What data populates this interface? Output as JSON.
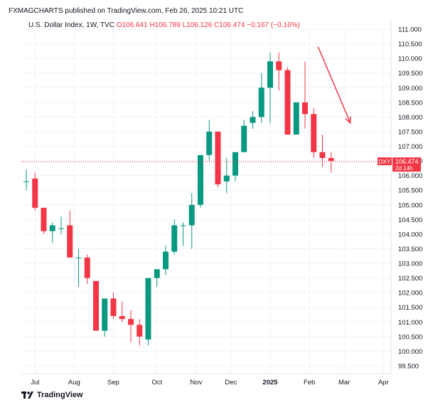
{
  "header": {
    "publisher_line": "FXMAGCHARTS published on TradingView.com, Feb 26, 2025 10:21 UTC"
  },
  "legend": {
    "symbol_line": "U.S. Dollar Index, 1W, TVC",
    "ohlc_line": "O106.641  H106.789  L106.126  C106.474  −0.167 (−0.16%)"
  },
  "price_tag": {
    "ticker": "DXY",
    "price": "106.474",
    "countdown": "2d 14h"
  },
  "footer": {
    "brand": "TradingView"
  },
  "colors": {
    "up": "#089981",
    "down": "#f23645",
    "grid": "#f0f3fa",
    "arrow": "#f23645"
  },
  "chart_data": {
    "type": "candlestick",
    "interval": "1W",
    "y_ticks": [
      "99.500",
      "100.000",
      "100.500",
      "101.000",
      "101.500",
      "102.000",
      "102.500",
      "103.000",
      "103.500",
      "104.000",
      "104.500",
      "105.000",
      "105.500",
      "106.000",
      "106.500",
      "107.000",
      "107.500",
      "108.000",
      "108.500",
      "109.000",
      "109.500",
      "110.000",
      "110.500",
      "111.000"
    ],
    "ylim": [
      99.3,
      111.3
    ],
    "x_ticks": [
      {
        "label": "Jul",
        "index": 1
      },
      {
        "label": "Aug",
        "index": 5.5
      },
      {
        "label": "Sep",
        "index": 10
      },
      {
        "label": "Oct",
        "index": 15
      },
      {
        "label": "Nov",
        "index": 19.5
      },
      {
        "label": "Dec",
        "index": 23.5
      },
      {
        "label": "2025",
        "index": 28
      },
      {
        "label": "Feb",
        "index": 32.5
      },
      {
        "label": "Mar",
        "index": 36.5
      },
      {
        "label": "Apr",
        "index": 41
      }
    ],
    "candles": [
      {
        "o": 105.8,
        "h": 106.2,
        "l": 105.5,
        "c": 105.8
      },
      {
        "o": 105.9,
        "h": 106.1,
        "l": 104.8,
        "c": 104.9
      },
      {
        "o": 104.9,
        "h": 104.9,
        "l": 104.0,
        "c": 104.1
      },
      {
        "o": 104.1,
        "h": 104.4,
        "l": 103.7,
        "c": 104.3
      },
      {
        "o": 104.2,
        "h": 104.6,
        "l": 104.0,
        "c": 104.2
      },
      {
        "o": 104.3,
        "h": 104.8,
        "l": 103.2,
        "c": 103.2
      },
      {
        "o": 103.2,
        "h": 103.5,
        "l": 102.2,
        "c": 103.2
      },
      {
        "o": 103.2,
        "h": 103.3,
        "l": 102.3,
        "c": 102.5
      },
      {
        "o": 102.4,
        "h": 102.4,
        "l": 100.7,
        "c": 100.7
      },
      {
        "o": 100.7,
        "h": 101.8,
        "l": 100.5,
        "c": 101.8
      },
      {
        "o": 101.8,
        "h": 102.0,
        "l": 101.1,
        "c": 101.2
      },
      {
        "o": 101.2,
        "h": 101.7,
        "l": 101.0,
        "c": 101.1
      },
      {
        "o": 101.1,
        "h": 101.4,
        "l": 100.3,
        "c": 100.9
      },
      {
        "o": 100.9,
        "h": 101.1,
        "l": 100.2,
        "c": 100.5
      },
      {
        "o": 100.4,
        "h": 102.5,
        "l": 100.2,
        "c": 102.5
      },
      {
        "o": 102.5,
        "h": 102.8,
        "l": 102.2,
        "c": 102.8
      },
      {
        "o": 102.8,
        "h": 103.6,
        "l": 102.6,
        "c": 103.4
      },
      {
        "o": 103.4,
        "h": 104.5,
        "l": 103.3,
        "c": 104.3
      },
      {
        "o": 104.3,
        "h": 104.4,
        "l": 103.6,
        "c": 104.3
      },
      {
        "o": 104.3,
        "h": 105.4,
        "l": 103.5,
        "c": 105.0
      },
      {
        "o": 105.0,
        "h": 106.7,
        "l": 104.9,
        "c": 106.7
      },
      {
        "o": 106.7,
        "h": 107.9,
        "l": 106.5,
        "c": 107.5
      },
      {
        "o": 107.5,
        "h": 107.5,
        "l": 105.6,
        "c": 105.7
      },
      {
        "o": 105.8,
        "h": 106.6,
        "l": 105.4,
        "c": 106.0
      },
      {
        "o": 106.0,
        "h": 106.8,
        "l": 105.8,
        "c": 106.8
      },
      {
        "o": 106.8,
        "h": 107.9,
        "l": 106.8,
        "c": 107.7
      },
      {
        "o": 107.8,
        "h": 108.2,
        "l": 107.6,
        "c": 108.0
      },
      {
        "o": 108.0,
        "h": 109.5,
        "l": 107.8,
        "c": 109.0
      },
      {
        "o": 109.0,
        "h": 110.2,
        "l": 107.8,
        "c": 109.9
      },
      {
        "o": 109.9,
        "h": 110.2,
        "l": 108.9,
        "c": 109.6
      },
      {
        "o": 109.6,
        "h": 109.7,
        "l": 107.4,
        "c": 107.4
      },
      {
        "o": 107.4,
        "h": 108.5,
        "l": 107.4,
        "c": 108.5
      },
      {
        "o": 108.5,
        "h": 109.9,
        "l": 107.6,
        "c": 108.1
      },
      {
        "o": 108.1,
        "h": 108.3,
        "l": 106.6,
        "c": 106.8
      },
      {
        "o": 106.8,
        "h": 107.4,
        "l": 106.3,
        "c": 106.6
      },
      {
        "o": 106.6,
        "h": 106.8,
        "l": 106.1,
        "c": 106.5
      }
    ],
    "last_price": 106.474,
    "arrow": {
      "from": {
        "index": 33.5,
        "price": 110.4
      },
      "to": {
        "index": 37.2,
        "price": 107.8
      }
    }
  }
}
